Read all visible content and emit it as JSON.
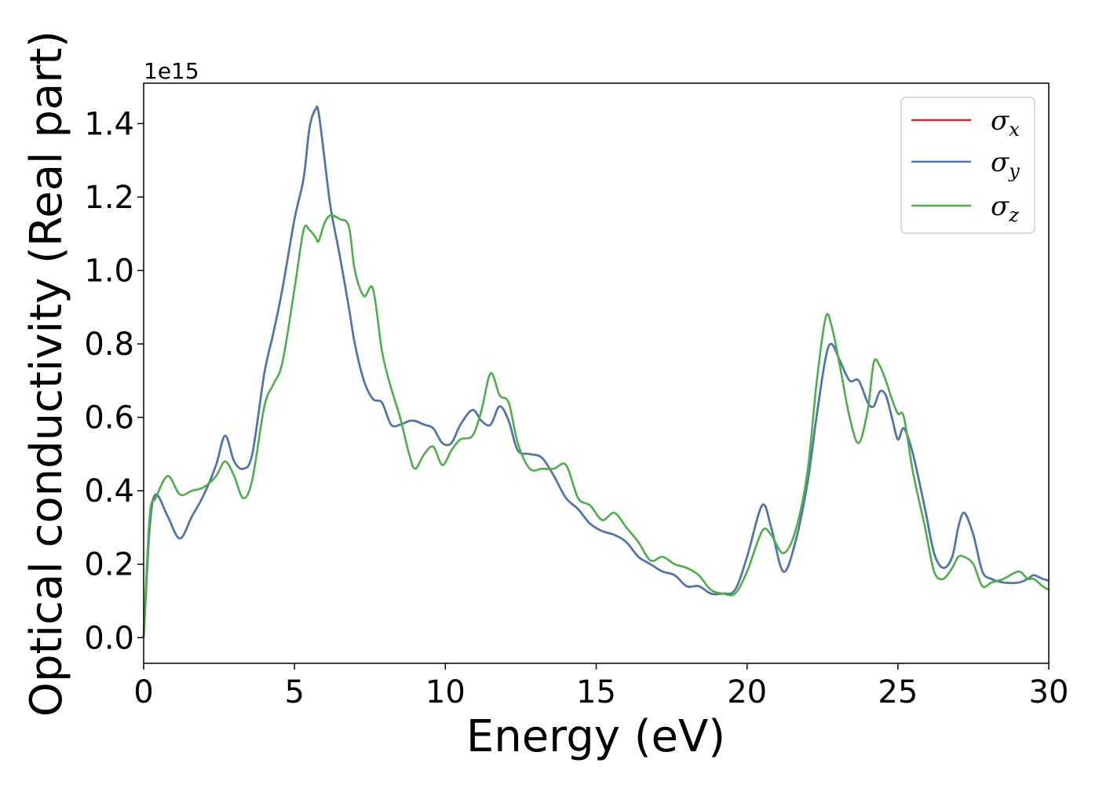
{
  "chart_data": {
    "type": "line",
    "title": "",
    "xlabel": "Energy (eV)",
    "ylabel": "Optical conductivity (Real part)",
    "y_offset_label": "1e15",
    "xlim": [
      0,
      30
    ],
    "ylim": [
      -0.07,
      1.51
    ],
    "xticks": [
      0,
      5,
      10,
      15,
      20,
      25,
      30
    ],
    "xtick_labels": [
      "0",
      "5",
      "10",
      "15",
      "20",
      "25",
      "30"
    ],
    "yticks": [
      0.0,
      0.2,
      0.4,
      0.6,
      0.8,
      1.0,
      1.2,
      1.4
    ],
    "ytick_labels": [
      "0.0",
      "0.2",
      "0.4",
      "0.6",
      "0.8",
      "1.0",
      "1.2",
      "1.4"
    ],
    "grid": false,
    "legend_position": "top-right",
    "x": [
      0,
      0.2,
      0.4,
      0.8,
      1.2,
      1.6,
      2.0,
      2.4,
      2.7,
      3.0,
      3.3,
      3.6,
      4.0,
      4.3,
      4.6,
      5.0,
      5.3,
      5.5,
      5.7,
      5.8,
      6.0,
      6.2,
      6.5,
      6.8,
      7.0,
      7.3,
      7.6,
      7.9,
      8.2,
      8.5,
      8.8,
      9.0,
      9.3,
      9.6,
      9.9,
      10.2,
      10.5,
      10.9,
      11.2,
      11.5,
      11.8,
      12.1,
      12.4,
      12.8,
      13.2,
      13.6,
      14.0,
      14.4,
      14.8,
      15.2,
      15.6,
      16.0,
      16.4,
      16.8,
      17.2,
      17.6,
      18.0,
      18.4,
      18.8,
      19.2,
      19.6,
      20.0,
      20.5,
      20.8,
      21.2,
      21.6,
      22.0,
      22.3,
      22.6,
      22.8,
      23.1,
      23.4,
      23.7,
      24.0,
      24.2,
      24.4,
      24.6,
      24.8,
      25.0,
      25.2,
      25.5,
      25.9,
      26.2,
      26.5,
      26.8,
      27.0,
      27.2,
      27.5,
      27.8,
      28.1,
      28.5,
      29.0,
      29.3,
      29.5,
      29.8,
      30.0
    ],
    "series": [
      {
        "name": "σx",
        "color": "#d62728",
        "values": [
          0.0,
          0.3,
          0.39,
          0.33,
          0.27,
          0.33,
          0.39,
          0.47,
          0.55,
          0.48,
          0.46,
          0.5,
          0.72,
          0.83,
          0.95,
          1.14,
          1.25,
          1.39,
          1.44,
          1.43,
          1.3,
          1.17,
          1.04,
          0.9,
          0.8,
          0.7,
          0.65,
          0.64,
          0.58,
          0.58,
          0.59,
          0.59,
          0.58,
          0.57,
          0.53,
          0.53,
          0.58,
          0.62,
          0.59,
          0.58,
          0.63,
          0.59,
          0.51,
          0.5,
          0.49,
          0.44,
          0.38,
          0.35,
          0.31,
          0.29,
          0.28,
          0.26,
          0.22,
          0.2,
          0.18,
          0.17,
          0.14,
          0.14,
          0.12,
          0.12,
          0.13,
          0.22,
          0.36,
          0.3,
          0.18,
          0.26,
          0.42,
          0.6,
          0.76,
          0.8,
          0.75,
          0.7,
          0.7,
          0.64,
          0.63,
          0.67,
          0.66,
          0.6,
          0.54,
          0.57,
          0.5,
          0.35,
          0.23,
          0.19,
          0.22,
          0.3,
          0.34,
          0.28,
          0.18,
          0.16,
          0.15,
          0.15,
          0.16,
          0.17,
          0.16,
          0.155
        ]
      },
      {
        "name": "σy",
        "color": "#4a79b0",
        "values": [
          0.0,
          0.3,
          0.39,
          0.33,
          0.27,
          0.33,
          0.39,
          0.47,
          0.55,
          0.48,
          0.46,
          0.5,
          0.72,
          0.83,
          0.95,
          1.14,
          1.25,
          1.39,
          1.44,
          1.43,
          1.3,
          1.17,
          1.04,
          0.9,
          0.8,
          0.7,
          0.65,
          0.64,
          0.58,
          0.58,
          0.59,
          0.59,
          0.58,
          0.57,
          0.53,
          0.53,
          0.58,
          0.62,
          0.59,
          0.58,
          0.63,
          0.59,
          0.51,
          0.5,
          0.49,
          0.44,
          0.38,
          0.35,
          0.31,
          0.29,
          0.28,
          0.26,
          0.22,
          0.2,
          0.18,
          0.17,
          0.14,
          0.14,
          0.12,
          0.12,
          0.13,
          0.22,
          0.36,
          0.3,
          0.18,
          0.26,
          0.42,
          0.6,
          0.76,
          0.8,
          0.75,
          0.7,
          0.7,
          0.64,
          0.63,
          0.67,
          0.66,
          0.6,
          0.54,
          0.57,
          0.5,
          0.35,
          0.23,
          0.19,
          0.22,
          0.3,
          0.34,
          0.28,
          0.18,
          0.16,
          0.15,
          0.15,
          0.16,
          0.17,
          0.16,
          0.155
        ]
      },
      {
        "name": "σz",
        "color": "#4daf4a",
        "values": [
          0.0,
          0.33,
          0.38,
          0.44,
          0.39,
          0.4,
          0.41,
          0.44,
          0.48,
          0.44,
          0.38,
          0.43,
          0.63,
          0.69,
          0.75,
          0.95,
          1.11,
          1.11,
          1.09,
          1.08,
          1.13,
          1.15,
          1.14,
          1.12,
          1.0,
          0.93,
          0.95,
          0.78,
          0.68,
          0.6,
          0.5,
          0.46,
          0.5,
          0.52,
          0.47,
          0.51,
          0.54,
          0.55,
          0.62,
          0.72,
          0.66,
          0.64,
          0.53,
          0.46,
          0.46,
          0.46,
          0.47,
          0.38,
          0.36,
          0.32,
          0.34,
          0.3,
          0.26,
          0.21,
          0.22,
          0.2,
          0.19,
          0.17,
          0.13,
          0.12,
          0.12,
          0.18,
          0.29,
          0.28,
          0.23,
          0.29,
          0.45,
          0.69,
          0.87,
          0.85,
          0.73,
          0.6,
          0.53,
          0.62,
          0.75,
          0.74,
          0.7,
          0.65,
          0.61,
          0.6,
          0.45,
          0.3,
          0.18,
          0.16,
          0.19,
          0.22,
          0.22,
          0.2,
          0.14,
          0.15,
          0.16,
          0.18,
          0.16,
          0.16,
          0.14,
          0.13
        ]
      }
    ]
  }
}
